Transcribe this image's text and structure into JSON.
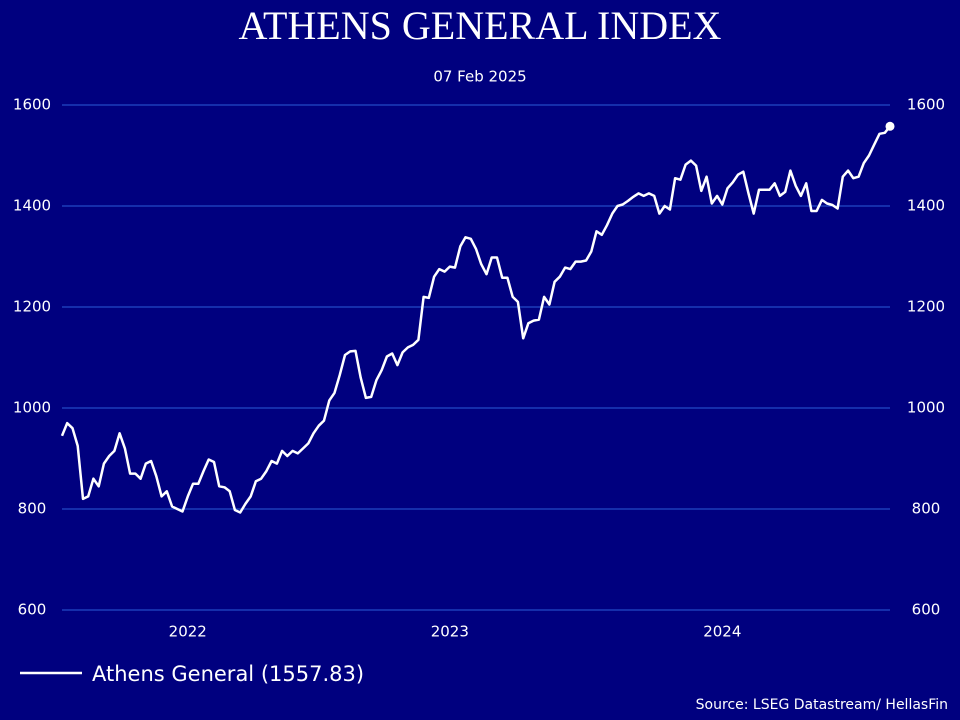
{
  "chart_data": {
    "type": "line",
    "title": "ATHENS GENERAL INDEX",
    "subtitle": "07 Feb 2025",
    "source": "Source: LSEG Datastream/ HellasFin",
    "categories": [
      null,
      null,
      null,
      null,
      null,
      null,
      null,
      null,
      null,
      null,
      null,
      null,
      null,
      null,
      null,
      null,
      null,
      null,
      null,
      null,
      null,
      null,
      null,
      null,
      "2022",
      null,
      null,
      null,
      null,
      null,
      null,
      null,
      null,
      null,
      null,
      null,
      null,
      null,
      null,
      null,
      null,
      null,
      null,
      null,
      null,
      null,
      null,
      null,
      null,
      null,
      null,
      null,
      null,
      null,
      null,
      null,
      null,
      null,
      null,
      null,
      null,
      null,
      null,
      null,
      null,
      null,
      null,
      null,
      null,
      null,
      null,
      null,
      null,
      null,
      "2023",
      null,
      null,
      null,
      null,
      null,
      null,
      null,
      null,
      null,
      null,
      null,
      null,
      null,
      null,
      null,
      null,
      null,
      null,
      null,
      null,
      null,
      null,
      null,
      null,
      null,
      null,
      null,
      null,
      null,
      null,
      null,
      null,
      null,
      null,
      null,
      null,
      null,
      null,
      null,
      null,
      null,
      null,
      null,
      null,
      null,
      null,
      null,
      null,
      null,
      null,
      null,
      "2024",
      null,
      null,
      null,
      null,
      null,
      null,
      null,
      null,
      null,
      null,
      null,
      null,
      null,
      null,
      null,
      null,
      null,
      null,
      null,
      null,
      null,
      null,
      null,
      null,
      null,
      null,
      null,
      null,
      null,
      null,
      null,
      null
    ],
    "series": [
      {
        "name": "Athens General (1557.83)",
        "color": "#ffffff",
        "values": [
          945,
          970,
          960,
          925,
          820,
          825,
          860,
          845,
          890,
          905,
          915,
          950,
          920,
          870,
          870,
          860,
          890,
          895,
          865,
          825,
          835,
          805,
          800,
          795,
          825,
          850,
          850,
          875,
          898,
          893,
          845,
          843,
          835,
          798,
          793,
          810,
          825,
          855,
          860,
          875,
          895,
          890,
          915,
          905,
          915,
          910,
          920,
          930,
          950,
          965,
          975,
          1015,
          1030,
          1065,
          1105,
          1112,
          1113,
          1060,
          1020,
          1022,
          1055,
          1075,
          1102,
          1108,
          1085,
          1110,
          1120,
          1125,
          1135,
          1220,
          1218,
          1260,
          1275,
          1270,
          1280,
          1278,
          1320,
          1338,
          1335,
          1315,
          1285,
          1265,
          1298,
          1298,
          1258,
          1258,
          1220,
          1210,
          1138,
          1168,
          1173,
          1175,
          1220,
          1205,
          1250,
          1260,
          1278,
          1275,
          1290,
          1290,
          1292,
          1310,
          1350,
          1343,
          1362,
          1385,
          1400,
          1403,
          1410,
          1418,
          1425,
          1420,
          1425,
          1420,
          1385,
          1400,
          1393,
          1455,
          1452,
          1482,
          1490,
          1480,
          1430,
          1458,
          1405,
          1420,
          1403,
          1435,
          1447,
          1462,
          1468,
          1425,
          1385,
          1432,
          1432,
          1432,
          1445,
          1420,
          1428,
          1470,
          1440,
          1420,
          1445,
          1390,
          1390,
          1412,
          1405,
          1402,
          1395,
          1458,
          1470,
          1455,
          1458,
          1485,
          1500,
          1522,
          1543,
          1545,
          1557.83
        ]
      }
    ],
    "ylim": [
      600,
      1600
    ],
    "yticks": [
      600,
      800,
      1000,
      1200,
      1400,
      1600
    ],
    "y2lim": [
      600,
      1600
    ],
    "y2ticks": [
      600,
      800,
      1000,
      1200,
      1400,
      1600
    ],
    "grid": true,
    "legend": "bottom-left"
  }
}
